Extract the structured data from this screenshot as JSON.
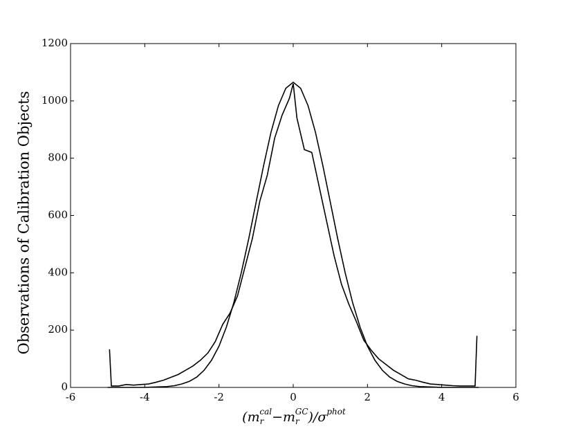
{
  "chart_data": {
    "type": "line",
    "ylabel": "Observations of Calibration Objects",
    "xlabel": [
      {
        "text": "(m"
      },
      {
        "text": "r",
        "sub": true
      },
      {
        "text": "cal",
        "sup": true
      },
      {
        "text": "−m"
      },
      {
        "text": "r",
        "sub": true
      },
      {
        "text": "GC",
        "sup": true
      },
      {
        "text": ")/σ"
      },
      {
        "text": "phot",
        "sup": true
      }
    ],
    "xlim": [
      -6,
      6
    ],
    "ylim": [
      0,
      1200
    ],
    "xticks": [
      -6,
      -4,
      -2,
      0,
      2,
      4,
      6
    ],
    "yticks": [
      0,
      200,
      400,
      600,
      800,
      1000,
      1200
    ],
    "series": [
      {
        "color": "#000000",
        "x": [
          -4.95,
          -4.9,
          -4.7,
          -4.5,
          -4.3,
          -4.1,
          -3.9,
          -3.7,
          -3.5,
          -3.3,
          -3.1,
          -2.9,
          -2.7,
          -2.5,
          -2.3,
          -2.1,
          -1.9,
          -1.7,
          -1.5,
          -1.3,
          -1.1,
          -0.9,
          -0.7,
          -0.5,
          -0.3,
          -0.1,
          0.0,
          0.1,
          0.3,
          0.5,
          0.7,
          0.9,
          1.1,
          1.3,
          1.5,
          1.7,
          1.9,
          2.1,
          2.3,
          2.5,
          2.7,
          2.9,
          3.1,
          3.3,
          3.5,
          3.7,
          3.9,
          4.1,
          4.3,
          4.5,
          4.7,
          4.9,
          4.95
        ],
        "values": [
          133,
          5,
          5,
          10,
          8,
          10,
          12,
          18,
          25,
          35,
          45,
          60,
          75,
          95,
          120,
          160,
          220,
          260,
          320,
          420,
          520,
          650,
          740,
          870,
          950,
          1010,
          1060,
          940,
          830,
          820,
          700,
          580,
          460,
          360,
          290,
          230,
          165,
          130,
          100,
          80,
          60,
          45,
          30,
          25,
          18,
          12,
          10,
          8,
          6,
          5,
          5,
          5,
          180
        ]
      },
      {
        "color": "#000000",
        "x": [
          -5.0,
          -4.8,
          -4.6,
          -4.4,
          -4.2,
          -4.0,
          -3.8,
          -3.6,
          -3.4,
          -3.2,
          -3.0,
          -2.8,
          -2.6,
          -2.4,
          -2.2,
          -2.0,
          -1.8,
          -1.6,
          -1.4,
          -1.2,
          -1.0,
          -0.8,
          -0.6,
          -0.4,
          -0.2,
          0.0,
          0.2,
          0.4,
          0.6,
          0.8,
          1.0,
          1.2,
          1.4,
          1.6,
          1.8,
          2.0,
          2.2,
          2.4,
          2.6,
          2.8,
          3.0,
          3.2,
          3.4,
          3.6,
          3.8,
          4.0,
          4.2,
          4.4,
          4.6,
          4.8,
          5.0
        ],
        "values": [
          0,
          0,
          0,
          0,
          0,
          0,
          1,
          2,
          3,
          6,
          12,
          21,
          36,
          60,
          95,
          144,
          211,
          296,
          400,
          518,
          646,
          773,
          890,
          983,
          1044,
          1065,
          1044,
          983,
          890,
          773,
          646,
          518,
          400,
          296,
          211,
          144,
          95,
          60,
          36,
          21,
          12,
          6,
          3,
          2,
          1,
          0,
          0,
          0,
          0,
          0,
          0
        ]
      }
    ]
  }
}
